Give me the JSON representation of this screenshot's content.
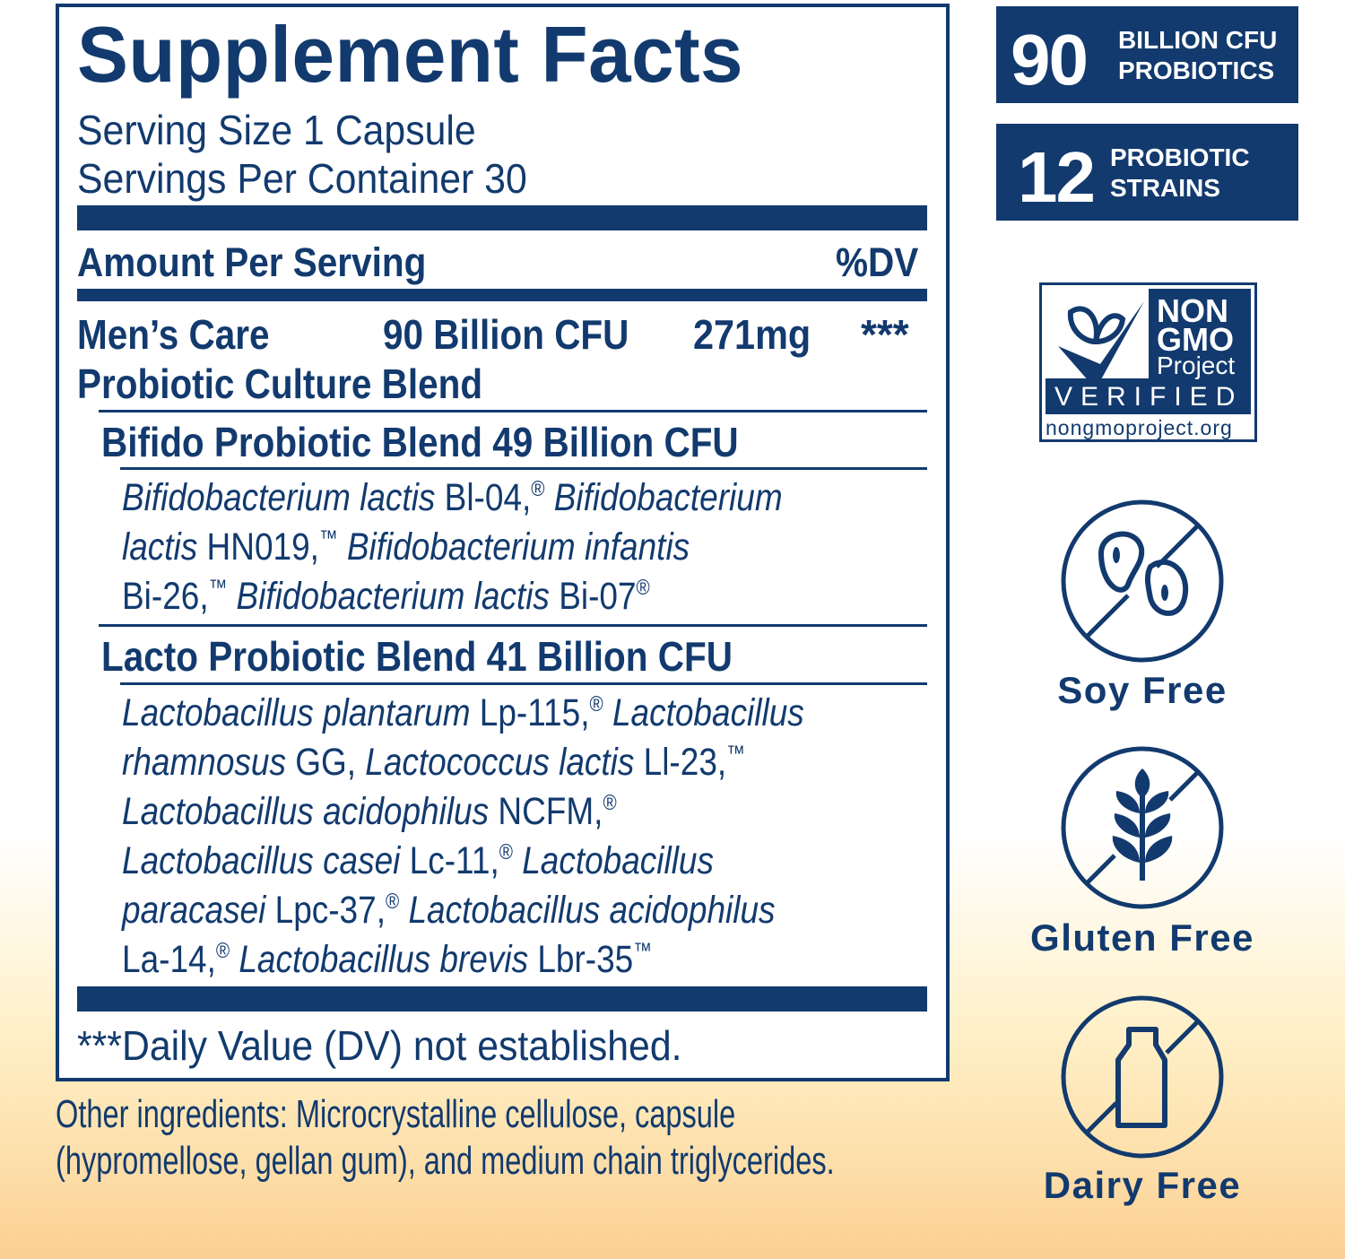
{
  "facts": {
    "title": "Supplement Facts",
    "serving_size": "Serving Size 1 Capsule",
    "servings_per_container": "Servings Per Container 30",
    "amount_header": "Amount Per Serving",
    "dv_header": "%DV",
    "blend": {
      "name_line1": "Men’s Care",
      "name_line2": "Probiotic Culture Blend",
      "cfu": "90 Billion CFU",
      "amount": "271mg",
      "dv": "***"
    },
    "bifido": {
      "heading": "Bifido Probiotic Blend 49 Billion CFU",
      "lines": [
        [
          {
            "t": "Bifidobacterium lactis",
            "i": true
          },
          {
            "t": " Bl-04,"
          },
          {
            "t": "®",
            "s": true
          },
          {
            "t": " Bifidobacterium",
            "i": true
          }
        ],
        [
          {
            "t": "lactis",
            "i": true
          },
          {
            "t": " HN019,"
          },
          {
            "t": "™",
            "s": true
          },
          {
            "t": " Bifidobacterium infantis",
            "i": true
          }
        ],
        [
          {
            "t": "Bi-26,"
          },
          {
            "t": "™",
            "s": true
          },
          {
            "t": " Bifidobacterium lactis",
            "i": true
          },
          {
            "t": " Bi-07"
          },
          {
            "t": "®",
            "s": true
          }
        ]
      ]
    },
    "lacto": {
      "heading": "Lacto Probiotic Blend 41 Billion CFU",
      "lines": [
        [
          {
            "t": "Lactobacillus plantarum",
            "i": true
          },
          {
            "t": " Lp-115,"
          },
          {
            "t": "®",
            "s": true
          },
          {
            "t": " Lactobacillus",
            "i": true
          }
        ],
        [
          {
            "t": "rhamnosus",
            "i": true
          },
          {
            "t": " GG, "
          },
          {
            "t": "Lactococcus lactis",
            "i": true
          },
          {
            "t": " Ll-23,"
          },
          {
            "t": "™",
            "s": true
          }
        ],
        [
          {
            "t": "Lactobacillus acidophilus",
            "i": true
          },
          {
            "t": " NCFM,"
          },
          {
            "t": "®",
            "s": true
          }
        ],
        [
          {
            "t": "Lactobacillus casei",
            "i": true
          },
          {
            "t": " Lc-11,"
          },
          {
            "t": "®",
            "s": true
          },
          {
            "t": " Lactobacillus",
            "i": true
          }
        ],
        [
          {
            "t": "paracasei",
            "i": true
          },
          {
            "t": " Lpc-37,"
          },
          {
            "t": "®",
            "s": true
          },
          {
            "t": " Lactobacillus acidophilus",
            "i": true
          }
        ],
        [
          {
            "t": "La-14,"
          },
          {
            "t": "®",
            "s": true
          },
          {
            "t": " Lactobacillus brevis",
            "i": true
          },
          {
            "t": " Lbr-35"
          },
          {
            "t": "™",
            "s": true
          }
        ]
      ]
    },
    "footnote": "***Daily Value (DV) not established."
  },
  "other_ingredients": {
    "line1": "Other ingredients: Microcrystalline cellulose, capsule",
    "line2": "(hypromellose, gellan gum), and medium chain triglycerides."
  },
  "badges": [
    {
      "number": "90",
      "line1": "BILLION CFU",
      "line2": "PROBIOTICS"
    },
    {
      "number": "12",
      "line1": "PROBIOTIC",
      "line2": "STRAINS"
    }
  ],
  "non_gmo": {
    "line1": "NON",
    "line2": "GMO",
    "line3": "Project",
    "verified": "VERIFIED",
    "url": "nongmoproject.org"
  },
  "free_labels": {
    "soy": "Soy Free",
    "gluten": "Gluten Free",
    "dairy": "Dairy Free"
  },
  "colors": {
    "navy": "#123a6e",
    "peach": "#fccf92"
  }
}
